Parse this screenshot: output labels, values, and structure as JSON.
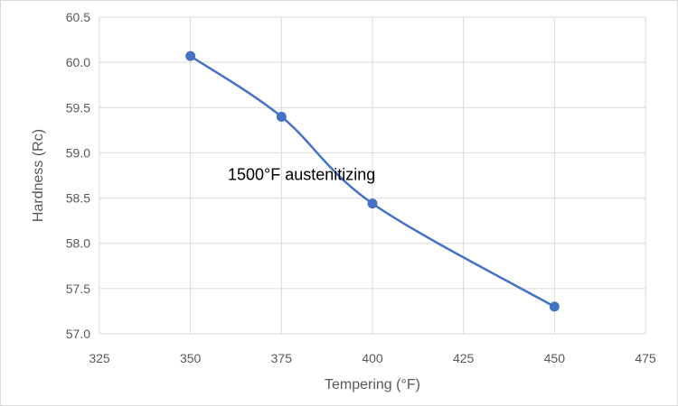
{
  "chart_data": {
    "type": "line",
    "title": "",
    "xlabel": "Tempering (°F)",
    "ylabel": "Hardness (Rc)",
    "xlim": [
      325,
      475
    ],
    "ylim": [
      57.0,
      60.5
    ],
    "x_ticks": [
      325,
      350,
      375,
      400,
      425,
      450,
      475
    ],
    "y_ticks": [
      "57.0",
      "57.5",
      "58.0",
      "58.5",
      "59.0",
      "59.5",
      "60.0",
      "60.5"
    ],
    "grid": true,
    "smooth": true,
    "series": [
      {
        "color": "#4472c4",
        "x": [
          350,
          375,
          400,
          450
        ],
        "y": [
          60.07,
          59.4,
          58.44,
          57.3
        ]
      }
    ],
    "annotations": [
      {
        "text": "1500°F austenitizing",
        "x": 362,
        "y": 58.7
      }
    ]
  }
}
